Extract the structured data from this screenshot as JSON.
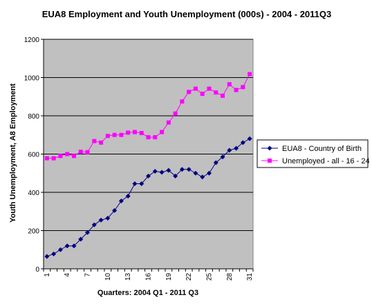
{
  "chart_data": {
    "type": "line",
    "title": "EUA8 Employment and Youth Unemployment (000s) - 2004 - 2011Q3",
    "xlabel": "Quarters: 2004 Q1 - 2011 Q3",
    "ylabel": "Youth Unemployment, A8 Employment",
    "x": [
      1,
      2,
      3,
      4,
      5,
      6,
      7,
      8,
      9,
      10,
      11,
      12,
      13,
      14,
      15,
      16,
      17,
      18,
      19,
      20,
      21,
      22,
      23,
      24,
      25,
      26,
      27,
      28,
      29,
      30,
      31
    ],
    "x_tick_labels": [
      "1",
      "4",
      "7",
      "10",
      "13",
      "16",
      "19",
      "22",
      "25",
      "28",
      "31"
    ],
    "ylim": [
      0,
      1200
    ],
    "y_ticks": [
      0,
      200,
      400,
      600,
      800,
      1000,
      1200
    ],
    "grid": true,
    "plot_background": "#c0c0c0",
    "legend_position": "right",
    "series": [
      {
        "name": "EUA8 - Country of Birth",
        "color": "#000080",
        "marker": "diamond",
        "values": [
          65,
          78,
          100,
          120,
          120,
          155,
          190,
          230,
          255,
          265,
          305,
          355,
          380,
          445,
          445,
          485,
          510,
          505,
          515,
          485,
          520,
          520,
          500,
          480,
          500,
          555,
          585,
          620,
          630,
          660,
          680
        ]
      },
      {
        "name": "Unemployed - all - 16 - 24",
        "color": "#ff00ff",
        "marker": "square",
        "values": [
          578,
          578,
          590,
          600,
          590,
          612,
          610,
          668,
          660,
          695,
          700,
          700,
          712,
          715,
          710,
          688,
          688,
          715,
          765,
          812,
          875,
          925,
          942,
          915,
          942,
          922,
          905,
          965,
          935,
          950,
          1018
        ]
      }
    ]
  }
}
